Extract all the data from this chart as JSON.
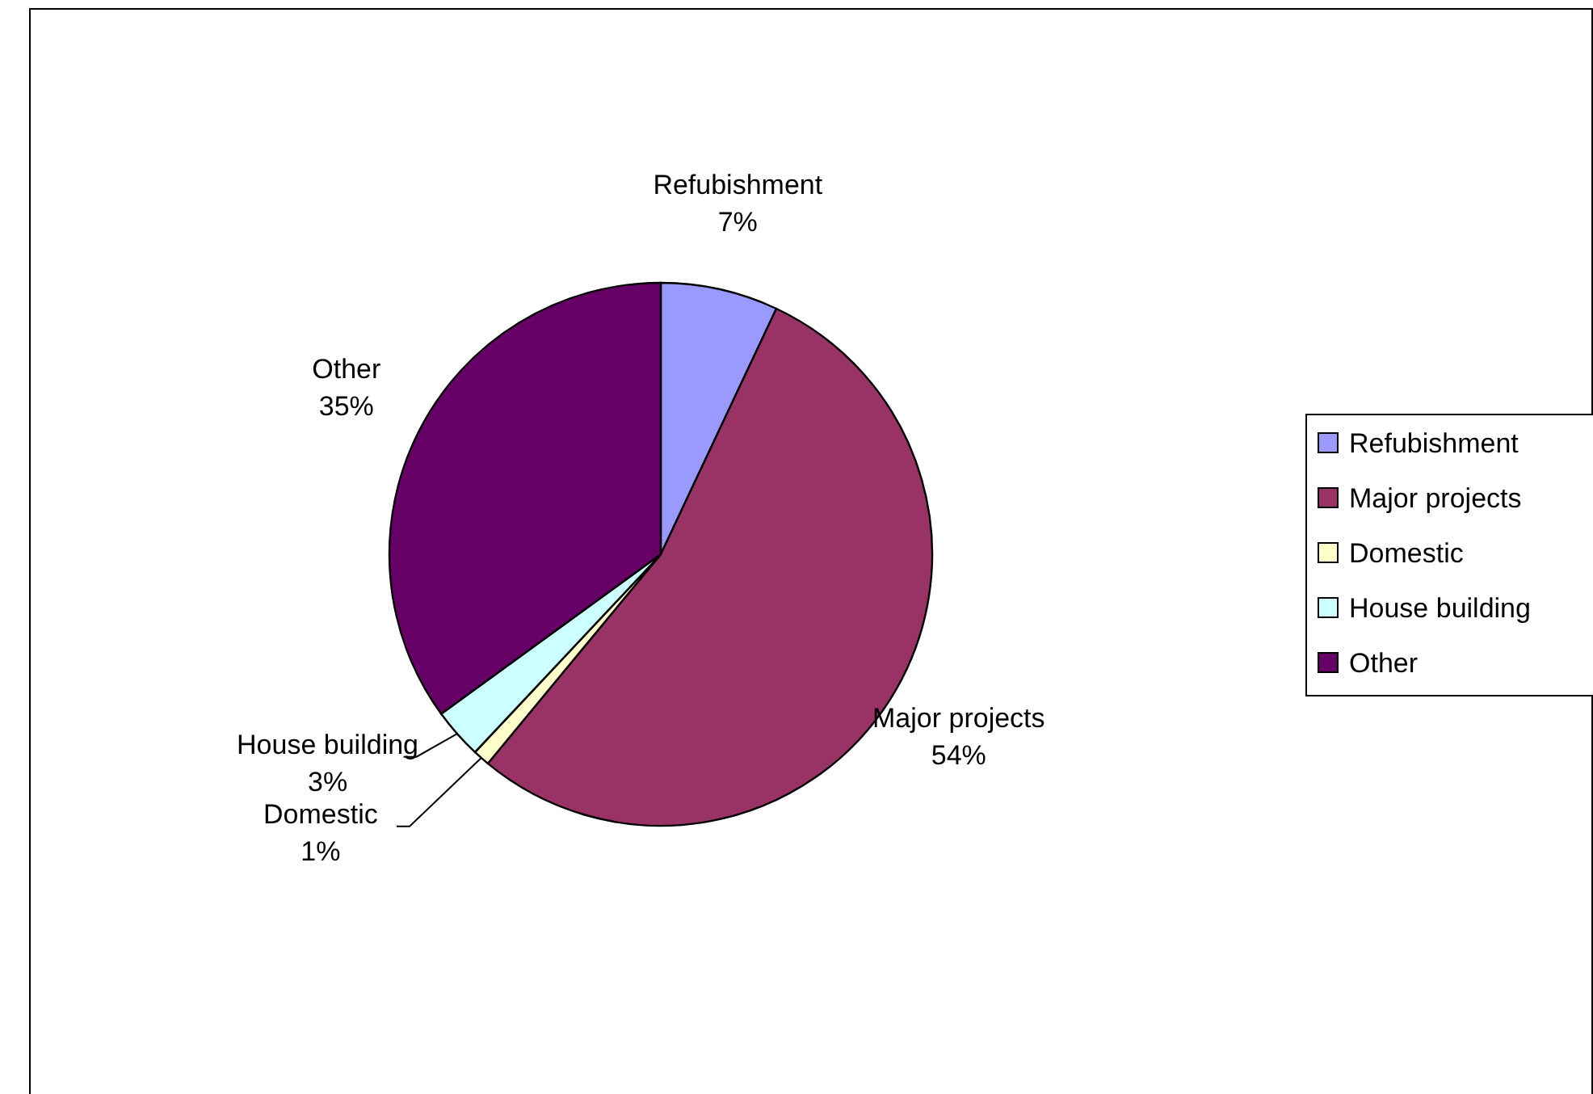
{
  "chart_data": {
    "type": "pie",
    "categories": [
      "Refubishment",
      "Major projects",
      "Domestic",
      "House building",
      "Other"
    ],
    "values": [
      7,
      54,
      1,
      3,
      35
    ],
    "value_labels": [
      "7%",
      "54%",
      "1%",
      "3%",
      "35%"
    ],
    "colors": [
      "#9999ff",
      "#993366",
      "#ffffcc",
      "#ccffff",
      "#660066"
    ],
    "legend": "right"
  }
}
